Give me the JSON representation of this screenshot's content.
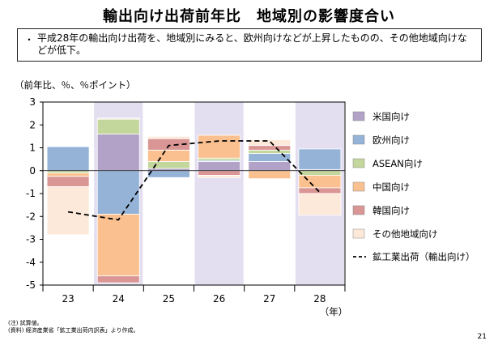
{
  "title": "輸出向け出荷前年比　地域別の影響度合い",
  "bullet": {
    "mark": "・",
    "text": "平成28年の輸出向け出荷を、地域別にみると、欧州向けなどが上昇したものの、その他地域向けなどが低下。"
  },
  "unit_label": "（前年比、％、％ポイント）",
  "notes": [
    "(注) 試算値。",
    "(資料) 経済産業省「鉱工業出荷内訳表」より作成。"
  ],
  "page_number": "21",
  "chart_data": {
    "type": "bar",
    "stacked": true,
    "categories": [
      "23",
      "24",
      "25",
      "26",
      "27",
      "28"
    ],
    "x_unit": "（年）",
    "ylim": [
      -5,
      3
    ],
    "yticks": [
      "3",
      "2",
      "1",
      "0",
      "-1",
      "-2",
      "-3",
      "-4",
      "-5"
    ],
    "shaded_categories": [
      "24",
      "26",
      "28"
    ],
    "grid": false,
    "legend_position": "right",
    "series": [
      {
        "name": "米国向け",
        "color": "#b3a2c7",
        "values": [
          0,
          1.6,
          0.1,
          0.4,
          0.4,
          0.05
        ]
      },
      {
        "name": "欧州向け",
        "color": "#95b3d7",
        "values": [
          1.05,
          -1.9,
          -0.3,
          0.05,
          0.35,
          0.9
        ]
      },
      {
        "name": "ASEAN向け",
        "color": "#c3d69b",
        "values": [
          -0.1,
          0.65,
          0.3,
          0.1,
          0.15,
          -0.2
        ]
      },
      {
        "name": "中国向け",
        "color": "#fac090",
        "values": [
          -0.15,
          -2.7,
          0.5,
          1.0,
          -0.35,
          -0.55
        ]
      },
      {
        "name": "韓国向け",
        "color": "#d99694",
        "values": [
          -0.45,
          -0.3,
          0.5,
          -0.2,
          0.2,
          -0.25
        ]
      },
      {
        "name": "その他地域向け",
        "color": "#fde9d9",
        "values": [
          -2.1,
          0.05,
          0.1,
          -0.1,
          0.25,
          -0.95
        ]
      }
    ],
    "line": {
      "name": "鉱工業出荷（輸出向け）",
      "values": [
        -1.8,
        -2.15,
        1.1,
        1.3,
        1.3,
        -0.95
      ]
    }
  }
}
